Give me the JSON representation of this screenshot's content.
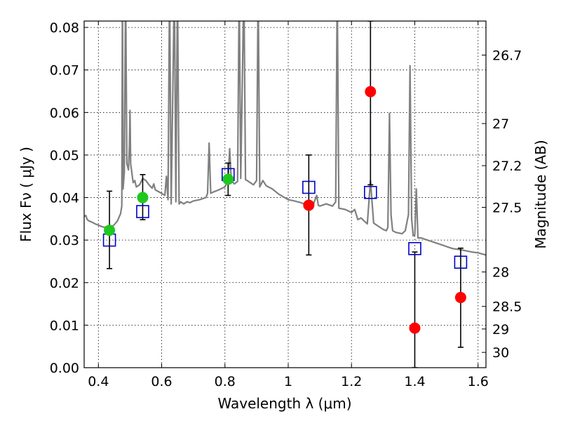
{
  "chart_data": {
    "type": "scatter",
    "xlabel": "Wavelength  λ (μm)",
    "ylabel": "Flux  Fν  ( μJy )",
    "ylabel_right": "Magnitude (AB)",
    "xlim": [
      0.355,
      1.625
    ],
    "ylim": [
      0.0,
      0.0815
    ],
    "x_ticks": [
      0.4,
      0.6,
      0.8,
      1.0,
      1.2,
      1.4,
      1.6
    ],
    "x_tick_labels": [
      "0.4",
      "0.6",
      "0.8",
      "1",
      "1.2",
      "1.4",
      "1.6"
    ],
    "y_ticks": [
      0.0,
      0.01,
      0.02,
      0.03,
      0.04,
      0.05,
      0.06,
      0.07,
      0.08
    ],
    "y_tick_labels": [
      "0.00",
      "0.01",
      "0.02",
      "0.03",
      "0.04",
      "0.05",
      "0.06",
      "0.07",
      "0.08"
    ],
    "right_ticks": [
      {
        "flux": 0.0735,
        "label": "26.7"
      },
      {
        "flux": 0.0574,
        "label": "27"
      },
      {
        "flux": 0.0475,
        "label": "27.2"
      },
      {
        "flux": 0.0377,
        "label": "27.5"
      },
      {
        "flux": 0.0225,
        "label": "28"
      },
      {
        "flux": 0.0144,
        "label": "28.5"
      },
      {
        "flux": 0.0091,
        "label": "29"
      },
      {
        "flux": 0.0036,
        "label": "30"
      }
    ],
    "grid": true,
    "colors": {
      "model": "#808080",
      "green": "#1ec81e",
      "red": "#ff0000",
      "square": "#0000cc",
      "errorbar": "#000000"
    },
    "series": [
      {
        "kind": "model-spectrum",
        "points": [
          [
            0.355,
            0.0355
          ],
          [
            0.36,
            0.0358
          ],
          [
            0.365,
            0.0348
          ],
          [
            0.37,
            0.0345
          ],
          [
            0.38,
            0.0342
          ],
          [
            0.39,
            0.0338
          ],
          [
            0.4,
            0.0335
          ],
          [
            0.41,
            0.0332
          ],
          [
            0.42,
            0.033
          ],
          [
            0.43,
            0.0332
          ],
          [
            0.44,
            0.033
          ],
          [
            0.45,
            0.0336
          ],
          [
            0.46,
            0.0345
          ],
          [
            0.47,
            0.0362
          ],
          [
            0.474,
            0.038
          ],
          [
            0.476,
            0.09
          ],
          [
            0.478,
            0.042
          ],
          [
            0.482,
            0.046
          ],
          [
            0.486,
            0.09
          ],
          [
            0.49,
            0.048
          ],
          [
            0.495,
            0.0465
          ],
          [
            0.498,
            0.052
          ],
          [
            0.5,
            0.0605
          ],
          [
            0.502,
            0.048
          ],
          [
            0.51,
            0.0435
          ],
          [
            0.515,
            0.044
          ],
          [
            0.52,
            0.0425
          ],
          [
            0.53,
            0.043
          ],
          [
            0.54,
            0.0445
          ],
          [
            0.55,
            0.044
          ],
          [
            0.56,
            0.043
          ],
          [
            0.57,
            0.0422
          ],
          [
            0.575,
            0.0432
          ],
          [
            0.58,
            0.0418
          ],
          [
            0.6,
            0.041
          ],
          [
            0.61,
            0.0405
          ],
          [
            0.615,
            0.045
          ],
          [
            0.62,
            0.0395
          ],
          [
            0.625,
            0.09
          ],
          [
            0.63,
            0.0385
          ],
          [
            0.64,
            0.09
          ],
          [
            0.645,
            0.039
          ],
          [
            0.65,
            0.09
          ],
          [
            0.655,
            0.0385
          ],
          [
            0.66,
            0.039
          ],
          [
            0.67,
            0.0385
          ],
          [
            0.68,
            0.039
          ],
          [
            0.69,
            0.0388
          ],
          [
            0.7,
            0.0392
          ],
          [
            0.72,
            0.0395
          ],
          [
            0.74,
            0.04
          ],
          [
            0.745,
            0.041
          ],
          [
            0.75,
            0.0528
          ],
          [
            0.755,
            0.041
          ],
          [
            0.76,
            0.0412
          ],
          [
            0.78,
            0.0418
          ],
          [
            0.8,
            0.0425
          ],
          [
            0.81,
            0.044
          ],
          [
            0.815,
            0.0515
          ],
          [
            0.82,
            0.044
          ],
          [
            0.83,
            0.0432
          ],
          [
            0.84,
            0.0438
          ],
          [
            0.845,
            0.09
          ],
          [
            0.85,
            0.0445
          ],
          [
            0.86,
            0.09
          ],
          [
            0.865,
            0.0442
          ],
          [
            0.87,
            0.044
          ],
          [
            0.88,
            0.0435
          ],
          [
            0.89,
            0.043
          ],
          [
            0.9,
            0.044
          ],
          [
            0.905,
            0.09
          ],
          [
            0.91,
            0.0425
          ],
          [
            0.92,
            0.044
          ],
          [
            0.93,
            0.0428
          ],
          [
            0.95,
            0.042
          ],
          [
            0.97,
            0.0408
          ],
          [
            1.0,
            0.0395
          ],
          [
            1.02,
            0.0392
          ],
          [
            1.04,
            0.0388
          ],
          [
            1.06,
            0.0382
          ],
          [
            1.08,
            0.0385
          ],
          [
            1.09,
            0.0405
          ],
          [
            1.095,
            0.0382
          ],
          [
            1.1,
            0.038
          ],
          [
            1.12,
            0.0385
          ],
          [
            1.14,
            0.038
          ],
          [
            1.15,
            0.039
          ],
          [
            1.155,
            0.09
          ],
          [
            1.16,
            0.0375
          ],
          [
            1.18,
            0.0372
          ],
          [
            1.2,
            0.0365
          ],
          [
            1.21,
            0.0372
          ],
          [
            1.22,
            0.0348
          ],
          [
            1.23,
            0.0352
          ],
          [
            1.24,
            0.0345
          ],
          [
            1.25,
            0.0338
          ],
          [
            1.26,
            0.044
          ],
          [
            1.27,
            0.034
          ],
          [
            1.28,
            0.0335
          ],
          [
            1.29,
            0.033
          ],
          [
            1.3,
            0.0325
          ],
          [
            1.31,
            0.0322
          ],
          [
            1.315,
            0.033
          ],
          [
            1.32,
            0.0598
          ],
          [
            1.325,
            0.036
          ],
          [
            1.33,
            0.0322
          ],
          [
            1.34,
            0.0318
          ],
          [
            1.36,
            0.0315
          ],
          [
            1.37,
            0.0322
          ],
          [
            1.38,
            0.036
          ],
          [
            1.385,
            0.071
          ],
          [
            1.39,
            0.035
          ],
          [
            1.395,
            0.031
          ],
          [
            1.4,
            0.0312
          ],
          [
            1.405,
            0.042
          ],
          [
            1.41,
            0.0305
          ],
          [
            1.42,
            0.0305
          ],
          [
            1.44,
            0.03
          ],
          [
            1.46,
            0.0295
          ],
          [
            1.48,
            0.029
          ],
          [
            1.5,
            0.0285
          ],
          [
            1.52,
            0.028
          ],
          [
            1.54,
            0.0278
          ],
          [
            1.56,
            0.0275
          ],
          [
            1.58,
            0.0272
          ],
          [
            1.6,
            0.027
          ],
          [
            1.625,
            0.0265
          ]
        ]
      },
      {
        "kind": "model-photometry",
        "marker": "square",
        "points": [
          {
            "x": 0.435,
            "y": 0.03
          },
          {
            "x": 0.54,
            "y": 0.0367
          },
          {
            "x": 0.81,
            "y": 0.0454
          },
          {
            "x": 1.065,
            "y": 0.0424
          },
          {
            "x": 1.26,
            "y": 0.0412
          },
          {
            "x": 1.4,
            "y": 0.028
          },
          {
            "x": 1.545,
            "y": 0.0248
          }
        ]
      },
      {
        "kind": "observed-green",
        "marker": "circle",
        "points": [
          {
            "x": 0.435,
            "y": 0.0323,
            "err_low": 0.0233,
            "err_high": 0.0415
          },
          {
            "x": 0.54,
            "y": 0.04,
            "err_low": 0.0348,
            "err_high": 0.0454
          },
          {
            "x": 0.81,
            "y": 0.0443,
            "err_low": 0.0405,
            "err_high": 0.0481
          }
        ]
      },
      {
        "kind": "observed-red",
        "marker": "circle",
        "points": [
          {
            "x": 1.065,
            "y": 0.0382,
            "err_low": 0.0265,
            "err_high": 0.05
          },
          {
            "x": 1.26,
            "y": 0.0649,
            "err_low": 0.043,
            "err_high": 0.0815
          },
          {
            "x": 1.4,
            "y": 0.0093,
            "err_low": 0.0,
            "err_high": 0.0272
          },
          {
            "x": 1.545,
            "y": 0.0165,
            "err_low": 0.0048,
            "err_high": 0.0281
          }
        ]
      }
    ]
  }
}
